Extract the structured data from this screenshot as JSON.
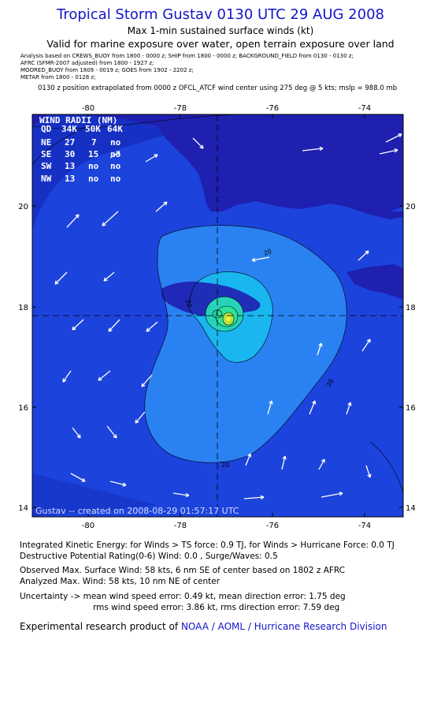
{
  "header": {
    "title": "Tropical Storm Gustav 0130 UTC 29 AUG 2008",
    "subtitle": "Max 1-min sustained surface winds (kt)",
    "valid": "Valid for marine exposure over water, open terrain exposure over land"
  },
  "analysis_lines": [
    "Analysis based on  CREWS_BUOY from 1800 - 0000 z;  SHIP from 1800 - 0000 z;  BACKGROUND_FIELD from 0130 - 0130 z;",
    "AFRC (SFMR-2007 adjusted) from 1800 - 1927 z;",
    "MOORED_BUOY from 1809 - 0019 z;  GOES from 1902 - 2202 z;",
    "METAR from 1800 - 0128 z;"
  ],
  "position_note": "0130 z position extrapolated from 0000 z OFCL_ATCF wind center using 275 deg @ 5 kts; mslp = 988.0 mb",
  "map": {
    "lon_ticks": [
      "-80",
      "-78",
      "-76",
      "-74"
    ],
    "lat_ticks": [
      "20",
      "18",
      "16",
      "14"
    ],
    "contour_label": "20",
    "footer": "Gustav -- created on 2008-08-29 01:57:17 UTC",
    "wind_radii": {
      "title": "WIND RADII (NM)",
      "header": [
        "QD",
        "34K",
        "50K",
        "64K"
      ],
      "rows": [
        [
          "NE",
          "27",
          "7",
          "no"
        ],
        [
          "SE",
          "30",
          "15",
          "no"
        ],
        [
          "SW",
          "13",
          "no",
          "no"
        ],
        [
          "NW",
          "13",
          "no",
          "no"
        ]
      ]
    },
    "colors": {
      "ocean": "#1c43dc",
      "land": "#1f1fb0",
      "band20": "#2a82f2",
      "band30": "#1ab6f0",
      "inner": "#26d3b6",
      "core": "#b4e43a"
    }
  },
  "stats": {
    "ike": "Integrated Kinetic Energy:  for Winds > TS force: 0.9 TJ,  for Winds > Hurricane Force: 0.0 TJ",
    "destructive": "Destructive Potential Rating(0-6)   Wind: 0.0 , Surge/Waves: 0.5",
    "observed": "Observed Max. Surface Wind: 58 kts, 6 nm SE of center based on 1802 z AFRC",
    "analyzed": "Analyzed Max. Wind: 58 kts, 10 nm NE of center",
    "uncertainty1": "Uncertainty -> mean wind speed error: 0.49 kt,   mean direction error: 1.75 deg",
    "uncertainty2": "rms wind speed error: 3.86 kt,   rms direction error: 7.59 deg"
  },
  "credit": {
    "prefix": "Experimental research product of",
    "link": "NOAA / AOML / Hurricane Research Division"
  }
}
